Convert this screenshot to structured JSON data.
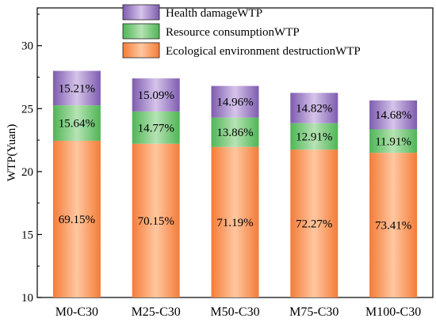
{
  "chart_data": {
    "type": "bar",
    "stacked": true,
    "title": "",
    "xlabel": "",
    "ylabel": "WTP(Yuan)",
    "ylim": [
      10,
      33
    ],
    "yticks": [
      "10",
      "15",
      "20",
      "25",
      "30"
    ],
    "grid": false,
    "legend_position": "top-left",
    "categories": [
      "M0-C30",
      "M25-C30",
      "M50-C30",
      "M75-C30",
      "M100-C30"
    ],
    "totals": [
      28.0,
      27.4,
      26.8,
      26.25,
      25.65
    ],
    "series": [
      {
        "name": "Ecological environment destructionWTP",
        "percent_labels": [
          "69.15%",
          "70.15%",
          "71.19%",
          "72.27%",
          "73.41%"
        ],
        "color": "#f5894a"
      },
      {
        "name": "Resource consumptionWTP",
        "percent_labels": [
          "15.64%",
          "14.77%",
          "13.86%",
          "12.91%",
          "11.91%"
        ],
        "color": "#5dbb63"
      },
      {
        "name": "Health damageWTP",
        "percent_labels": [
          "15.21%",
          "15.09%",
          "14.96%",
          "14.82%",
          "14.68%"
        ],
        "color": "#8c6bb8"
      }
    ],
    "legend_order": [
      "Health damageWTP",
      "Resource consumptionWTP",
      "Ecological environment destructionWTP"
    ]
  }
}
